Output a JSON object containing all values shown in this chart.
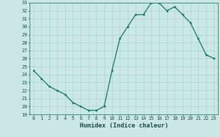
{
  "x": [
    0,
    1,
    2,
    3,
    4,
    5,
    6,
    7,
    8,
    9,
    10,
    11,
    12,
    13,
    14,
    15,
    16,
    17,
    18,
    19,
    20,
    21,
    22,
    23
  ],
  "y": [
    24.5,
    23.5,
    22.5,
    22.0,
    21.5,
    20.5,
    20.0,
    19.5,
    19.5,
    20.0,
    24.5,
    28.5,
    30.0,
    31.5,
    31.5,
    33.0,
    33.0,
    32.0,
    32.5,
    31.5,
    30.5,
    28.5,
    26.5,
    26.0
  ],
  "xlabel": "Humidex (Indice chaleur)",
  "ylim": [
    19,
    33
  ],
  "xlim": [
    -0.5,
    23.5
  ],
  "yticks": [
    19,
    20,
    21,
    22,
    23,
    24,
    25,
    26,
    27,
    28,
    29,
    30,
    31,
    32,
    33
  ],
  "xticks": [
    0,
    1,
    2,
    3,
    4,
    5,
    6,
    7,
    8,
    9,
    10,
    11,
    12,
    13,
    14,
    15,
    16,
    17,
    18,
    19,
    20,
    21,
    22,
    23
  ],
  "line_color": "#1a7a6e",
  "marker_color": "#1a7a6e",
  "bg_color": "#cce8e4",
  "grid_color": "#a8d4cf",
  "tick_label_color": "#1a4a44",
  "font_family": "monospace",
  "xlabel_fontsize": 6.5,
  "tick_fontsize": 5.0,
  "linewidth": 1.0,
  "markersize": 2.0
}
